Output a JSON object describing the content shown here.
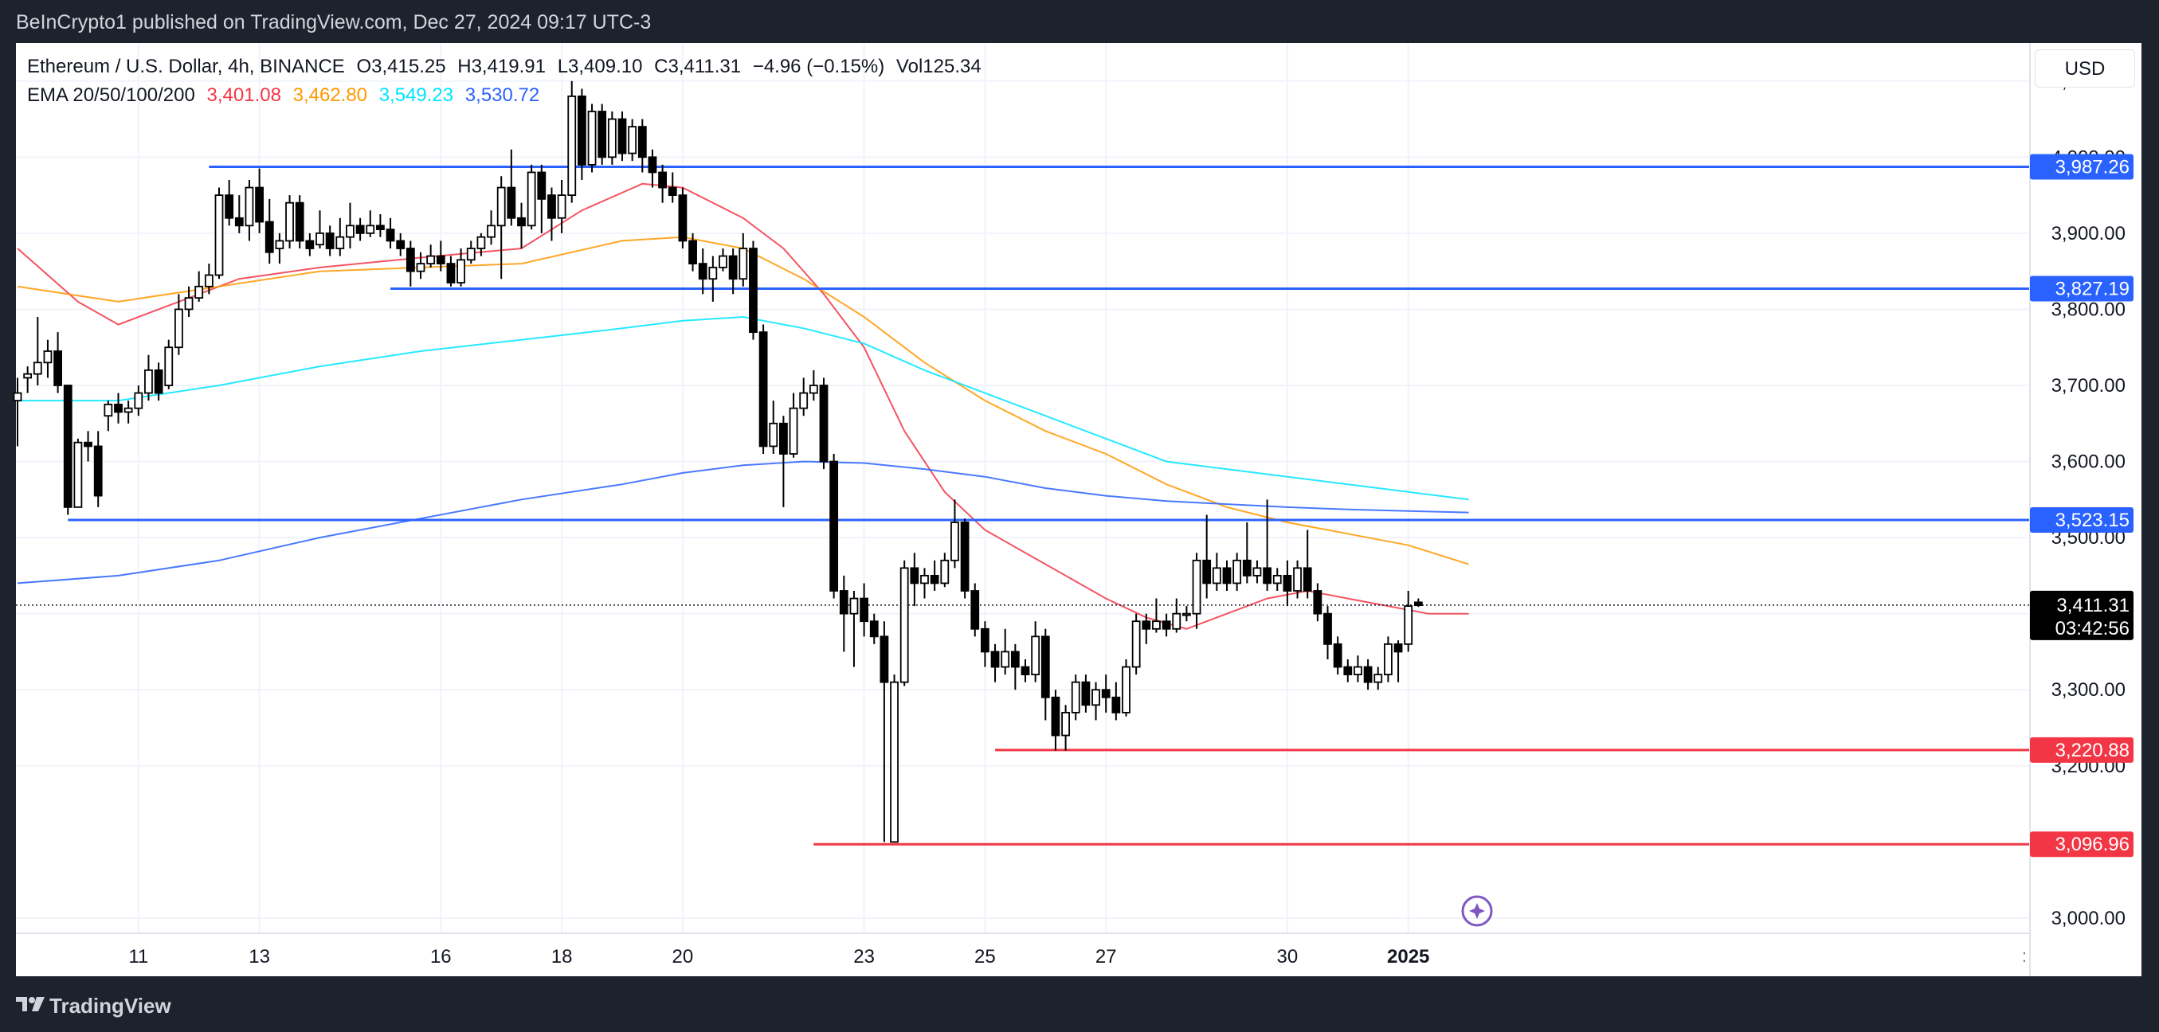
{
  "header": {
    "attribution": "BeInCrypto1 published on TradingView.com, Dec 27, 2024 09:17 UTC-3"
  },
  "footer": {
    "logo_text": "TradingView"
  },
  "currency_button": {
    "label": "USD"
  },
  "legend": {
    "symbol": "Ethereum / U.S. Dollar, 4h, BINANCE",
    "open": "O3,415.25",
    "high": "H3,419.91",
    "low": "L3,409.10",
    "close": "C3,411.31",
    "change": "−4.96 (−0.15%)",
    "volume": "Vol125.34",
    "ema_label": "EMA 20/50/100/200",
    "ema_values": [
      {
        "value": "3,401.08",
        "color": "#f23645"
      },
      {
        "value": "3,462.80",
        "color": "#ff9800"
      },
      {
        "value": "3,549.23",
        "color": "#00e5ff"
      },
      {
        "value": "3,530.72",
        "color": "#2962ff"
      }
    ]
  },
  "chart_data": {
    "type": "candlestick",
    "ylim": [
      2980,
      4150
    ],
    "y_ticks": [
      "4,100.00",
      "4,000.00",
      "3,900.00",
      "3,800.00",
      "3,700.00",
      "3,600.00",
      "3,500.00",
      "3,400.00",
      "3,300.00",
      "3,200.00",
      "3,000.00"
    ],
    "x_ticks": [
      {
        "label": "11",
        "i": 12
      },
      {
        "label": "13",
        "i": 24
      },
      {
        "label": "16",
        "i": 42
      },
      {
        "label": "18",
        "i": 54
      },
      {
        "label": "20",
        "i": 66
      },
      {
        "label": "23",
        "i": 84
      },
      {
        "label": "25",
        "i": 96
      },
      {
        "label": "27",
        "i": 108
      },
      {
        "label": "30",
        "i": 126
      },
      {
        "label": "2025",
        "i": 138,
        "bold": true
      }
    ],
    "candles": [
      [
        3680,
        3690,
        3620,
        3710
      ],
      [
        3710,
        3715,
        3690,
        3725
      ],
      [
        3715,
        3730,
        3700,
        3790
      ],
      [
        3730,
        3745,
        3710,
        3760
      ],
      [
        3745,
        3700,
        3690,
        3770
      ],
      [
        3700,
        3540,
        3530,
        3700
      ],
      [
        3540,
        3625,
        3540,
        3630
      ],
      [
        3625,
        3620,
        3600,
        3640
      ],
      [
        3620,
        3555,
        3540,
        3640
      ],
      [
        3660,
        3675,
        3640,
        3680
      ],
      [
        3675,
        3665,
        3650,
        3690
      ],
      [
        3665,
        3670,
        3650,
        3680
      ],
      [
        3670,
        3690,
        3660,
        3700
      ],
      [
        3690,
        3720,
        3680,
        3740
      ],
      [
        3720,
        3690,
        3680,
        3730
      ],
      [
        3700,
        3750,
        3695,
        3760
      ],
      [
        3750,
        3800,
        3740,
        3820
      ],
      [
        3800,
        3815,
        3790,
        3830
      ],
      [
        3815,
        3830,
        3810,
        3850
      ],
      [
        3830,
        3845,
        3820,
        3860
      ],
      [
        3845,
        3950,
        3840,
        3960
      ],
      [
        3950,
        3920,
        3910,
        3970
      ],
      [
        3920,
        3910,
        3900,
        3950
      ],
      [
        3910,
        3960,
        3890,
        3970
      ],
      [
        3960,
        3915,
        3900,
        3985
      ],
      [
        3915,
        3875,
        3860,
        3945
      ],
      [
        3880,
        3890,
        3860,
        3900
      ],
      [
        3890,
        3940,
        3880,
        3950
      ],
      [
        3940,
        3890,
        3880,
        3950
      ],
      [
        3890,
        3880,
        3870,
        3900
      ],
      [
        3885,
        3900,
        3880,
        3930
      ],
      [
        3900,
        3880,
        3870,
        3910
      ],
      [
        3880,
        3895,
        3870,
        3920
      ],
      [
        3895,
        3910,
        3880,
        3940
      ],
      [
        3910,
        3900,
        3890,
        3920
      ],
      [
        3900,
        3910,
        3895,
        3930
      ],
      [
        3910,
        3905,
        3895,
        3925
      ],
      [
        3905,
        3890,
        3880,
        3920
      ],
      [
        3890,
        3880,
        3870,
        3900
      ],
      [
        3880,
        3850,
        3830,
        3890
      ],
      [
        3850,
        3860,
        3840,
        3875
      ],
      [
        3860,
        3870,
        3855,
        3885
      ],
      [
        3870,
        3860,
        3850,
        3890
      ],
      [
        3860,
        3835,
        3830,
        3870
      ],
      [
        3835,
        3865,
        3830,
        3880
      ],
      [
        3865,
        3880,
        3860,
        3890
      ],
      [
        3880,
        3895,
        3870,
        3900
      ],
      [
        3895,
        3910,
        3885,
        3930
      ],
      [
        3910,
        3960,
        3840,
        3975
      ],
      [
        3960,
        3920,
        3910,
        4010
      ],
      [
        3920,
        3910,
        3880,
        3940
      ],
      [
        3910,
        3980,
        3905,
        3990
      ],
      [
        3980,
        3945,
        3900,
        3990
      ],
      [
        3950,
        3920,
        3890,
        3960
      ],
      [
        3920,
        3950,
        3900,
        3970
      ],
      [
        3950,
        4080,
        3940,
        4100
      ],
      [
        4080,
        3990,
        3970,
        4090
      ],
      [
        3990,
        4060,
        3980,
        4070
      ],
      [
        4060,
        4000,
        3990,
        4070
      ],
      [
        4000,
        4050,
        3990,
        4060
      ],
      [
        4050,
        4005,
        3995,
        4060
      ],
      [
        4005,
        4040,
        3995,
        4050
      ],
      [
        4040,
        4000,
        3980,
        4050
      ],
      [
        4000,
        3980,
        3960,
        4010
      ],
      [
        3980,
        3960,
        3940,
        3990
      ],
      [
        3960,
        3950,
        3940,
        3980
      ],
      [
        3950,
        3890,
        3880,
        3960
      ],
      [
        3890,
        3860,
        3850,
        3900
      ],
      [
        3860,
        3840,
        3820,
        3880
      ],
      [
        3840,
        3855,
        3810,
        3870
      ],
      [
        3855,
        3870,
        3850,
        3880
      ],
      [
        3870,
        3840,
        3820,
        3880
      ],
      [
        3840,
        3880,
        3830,
        3900
      ],
      [
        3880,
        3770,
        3760,
        3890
      ],
      [
        3770,
        3620,
        3610,
        3780
      ],
      [
        3620,
        3650,
        3610,
        3680
      ],
      [
        3650,
        3610,
        3540,
        3660
      ],
      [
        3610,
        3670,
        3605,
        3690
      ],
      [
        3670,
        3690,
        3660,
        3710
      ],
      [
        3690,
        3700,
        3680,
        3720
      ],
      [
        3700,
        3600,
        3590,
        3710
      ],
      [
        3600,
        3430,
        3420,
        3610
      ],
      [
        3430,
        3400,
        3350,
        3450
      ],
      [
        3400,
        3420,
        3330,
        3430
      ],
      [
        3420,
        3390,
        3370,
        3440
      ],
      [
        3390,
        3370,
        3360,
        3400
      ],
      [
        3370,
        3310,
        3100,
        3390
      ],
      [
        3100,
        3310,
        3100,
        3320
      ],
      [
        3310,
        3460,
        3305,
        3470
      ],
      [
        3460,
        3440,
        3410,
        3480
      ],
      [
        3440,
        3450,
        3420,
        3460
      ],
      [
        3450,
        3440,
        3430,
        3470
      ],
      [
        3440,
        3470,
        3435,
        3480
      ],
      [
        3470,
        3520,
        3460,
        3550
      ],
      [
        3520,
        3430,
        3420,
        3525
      ],
      [
        3430,
        3380,
        3370,
        3440
      ],
      [
        3380,
        3350,
        3330,
        3390
      ],
      [
        3350,
        3330,
        3310,
        3360
      ],
      [
        3330,
        3350,
        3320,
        3380
      ],
      [
        3350,
        3330,
        3300,
        3360
      ],
      [
        3330,
        3320,
        3310,
        3340
      ],
      [
        3320,
        3370,
        3310,
        3390
      ],
      [
        3370,
        3290,
        3260,
        3380
      ],
      [
        3290,
        3240,
        3220,
        3300
      ],
      [
        3240,
        3270,
        3220,
        3280
      ],
      [
        3270,
        3310,
        3260,
        3320
      ],
      [
        3310,
        3280,
        3270,
        3320
      ],
      [
        3280,
        3300,
        3260,
        3310
      ],
      [
        3300,
        3290,
        3270,
        3320
      ],
      [
        3290,
        3270,
        3260,
        3310
      ],
      [
        3270,
        3330,
        3265,
        3340
      ],
      [
        3330,
        3390,
        3320,
        3400
      ],
      [
        3390,
        3380,
        3360,
        3400
      ],
      [
        3380,
        3390,
        3375,
        3420
      ],
      [
        3390,
        3380,
        3370,
        3400
      ],
      [
        3380,
        3400,
        3375,
        3420
      ],
      [
        3400,
        3400,
        3390,
        3410
      ],
      [
        3400,
        3470,
        3380,
        3480
      ],
      [
        3470,
        3440,
        3420,
        3530
      ],
      [
        3440,
        3460,
        3430,
        3480
      ],
      [
        3460,
        3440,
        3430,
        3470
      ],
      [
        3440,
        3470,
        3430,
        3480
      ],
      [
        3470,
        3450,
        3440,
        3520
      ],
      [
        3450,
        3460,
        3440,
        3470
      ],
      [
        3460,
        3440,
        3430,
        3550
      ],
      [
        3440,
        3450,
        3430,
        3460
      ],
      [
        3450,
        3430,
        3410,
        3470
      ],
      [
        3430,
        3460,
        3420,
        3470
      ],
      [
        3460,
        3430,
        3420,
        3510
      ],
      [
        3430,
        3400,
        3390,
        3440
      ],
      [
        3400,
        3360,
        3340,
        3410
      ],
      [
        3360,
        3330,
        3320,
        3370
      ],
      [
        3330,
        3320,
        3310,
        3340
      ],
      [
        3320,
        3330,
        3310,
        3345
      ],
      [
        3330,
        3310,
        3300,
        3340
      ],
      [
        3310,
        3320,
        3300,
        3330
      ],
      [
        3320,
        3360,
        3310,
        3370
      ],
      [
        3360,
        3350,
        3310,
        3365
      ],
      [
        3360,
        3410,
        3350,
        3430
      ],
      [
        3415,
        3411,
        3409,
        3420
      ]
    ],
    "ema": [
      {
        "name": "EMA 20",
        "color": "#f23645",
        "points": [
          [
            0,
            3880
          ],
          [
            6,
            3810
          ],
          [
            10,
            3780
          ],
          [
            16,
            3810
          ],
          [
            22,
            3840
          ],
          [
            30,
            3855
          ],
          [
            40,
            3868
          ],
          [
            50,
            3880
          ],
          [
            56,
            3930
          ],
          [
            62,
            3965
          ],
          [
            66,
            3960
          ],
          [
            72,
            3920
          ],
          [
            76,
            3880
          ],
          [
            80,
            3820
          ],
          [
            84,
            3750
          ],
          [
            88,
            3640
          ],
          [
            92,
            3560
          ],
          [
            96,
            3510
          ],
          [
            100,
            3480
          ],
          [
            104,
            3450
          ],
          [
            108,
            3420
          ],
          [
            112,
            3395
          ],
          [
            116,
            3380
          ],
          [
            120,
            3400
          ],
          [
            124,
            3420
          ],
          [
            128,
            3430
          ],
          [
            132,
            3420
          ],
          [
            136,
            3410
          ],
          [
            140,
            3400
          ],
          [
            144,
            3400
          ]
        ]
      },
      {
        "name": "EMA 50",
        "color": "#ff9800",
        "points": [
          [
            0,
            3830
          ],
          [
            10,
            3810
          ],
          [
            20,
            3830
          ],
          [
            30,
            3850
          ],
          [
            40,
            3855
          ],
          [
            50,
            3860
          ],
          [
            60,
            3890
          ],
          [
            66,
            3895
          ],
          [
            72,
            3880
          ],
          [
            78,
            3840
          ],
          [
            84,
            3790
          ],
          [
            90,
            3730
          ],
          [
            96,
            3680
          ],
          [
            102,
            3640
          ],
          [
            108,
            3610
          ],
          [
            114,
            3570
          ],
          [
            120,
            3540
          ],
          [
            126,
            3520
          ],
          [
            132,
            3505
          ],
          [
            138,
            3490
          ],
          [
            144,
            3465
          ]
        ]
      },
      {
        "name": "EMA 100",
        "color": "#00e5ff",
        "points": [
          [
            0,
            3680
          ],
          [
            10,
            3680
          ],
          [
            20,
            3700
          ],
          [
            30,
            3725
          ],
          [
            40,
            3745
          ],
          [
            50,
            3760
          ],
          [
            60,
            3775
          ],
          [
            66,
            3785
          ],
          [
            72,
            3790
          ],
          [
            78,
            3775
          ],
          [
            84,
            3755
          ],
          [
            90,
            3720
          ],
          [
            96,
            3690
          ],
          [
            102,
            3660
          ],
          [
            108,
            3630
          ],
          [
            114,
            3600
          ],
          [
            120,
            3590
          ],
          [
            126,
            3580
          ],
          [
            132,
            3570
          ],
          [
            138,
            3560
          ],
          [
            144,
            3550
          ]
        ]
      },
      {
        "name": "EMA 200",
        "color": "#2962ff",
        "points": [
          [
            0,
            3440
          ],
          [
            10,
            3450
          ],
          [
            20,
            3470
          ],
          [
            30,
            3500
          ],
          [
            40,
            3525
          ],
          [
            50,
            3550
          ],
          [
            60,
            3570
          ],
          [
            66,
            3585
          ],
          [
            72,
            3595
          ],
          [
            78,
            3600
          ],
          [
            84,
            3598
          ],
          [
            90,
            3590
          ],
          [
            96,
            3580
          ],
          [
            102,
            3565
          ],
          [
            108,
            3555
          ],
          [
            114,
            3548
          ],
          [
            120,
            3544
          ],
          [
            126,
            3540
          ],
          [
            132,
            3537
          ],
          [
            138,
            3535
          ],
          [
            144,
            3533
          ]
        ]
      }
    ],
    "levels": [
      {
        "value": 3987.26,
        "label": "3,987.26",
        "color": "#2962ff",
        "start_i": 19
      },
      {
        "value": 3827.19,
        "label": "3,827.19",
        "color": "#2962ff",
        "start_i": 37
      },
      {
        "value": 3523.15,
        "label": "3,523.15",
        "color": "#2962ff",
        "start_i": 5
      },
      {
        "value": 3220.88,
        "label": "3,220.88",
        "color": "#f23645",
        "start_i": 97
      },
      {
        "value": 3096.96,
        "label": "3,096.96",
        "color": "#f23645",
        "start_i": 79
      }
    ],
    "last_price": {
      "value": 3411.31,
      "label": "3,411.31",
      "countdown": "03:42:56"
    }
  }
}
